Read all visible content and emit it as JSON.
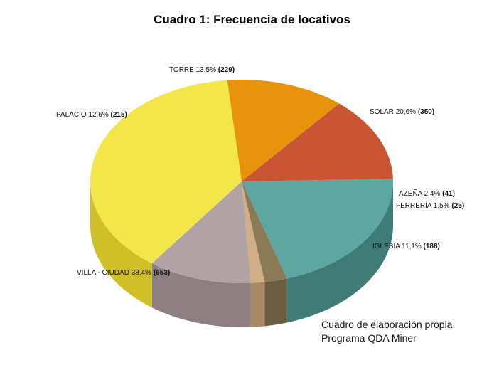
{
  "chart_data": {
    "type": "pie",
    "title": "Cuadro 1: Frecuencia de locativos",
    "slices": [
      {
        "label": "SOLAR",
        "pct": "20,6%",
        "count": "(350)",
        "value": 350,
        "color": "#5da6a1",
        "side": "#3f7c78"
      },
      {
        "label": "AZEÑA",
        "pct": "2,4%",
        "count": "(41)",
        "value": 41,
        "color": "#8a7a55",
        "side": "#6b5d3f"
      },
      {
        "label": "FERRERÍA",
        "pct": "1,5%",
        "count": "(25)",
        "value": 25,
        "color": "#d2ae86",
        "side": "#a88963"
      },
      {
        "label": "IGLESIA",
        "pct": "11,1%",
        "count": "(188)",
        "value": 188,
        "color": "#b1a3a5",
        "side": "#8d7f81"
      },
      {
        "label": "VILLA - CIUDAD",
        "pct": "38,4%",
        "count": "(653)",
        "value": 653,
        "color": "#f2e64a",
        "side": "#cfc02a"
      },
      {
        "label": "PALACIO",
        "pct": "12,6%",
        "count": "(215)",
        "value": 215,
        "color": "#e7930c",
        "side": "#b87208"
      },
      {
        "label": "TORRE",
        "pct": "13,5%",
        "count": "(229)",
        "value": 229,
        "color": "#c95533",
        "side": "#9e3f22"
      }
    ]
  },
  "note": {
    "line1": "Cuadro de elaboración propia.",
    "line2": "Programa QDA Miner"
  }
}
